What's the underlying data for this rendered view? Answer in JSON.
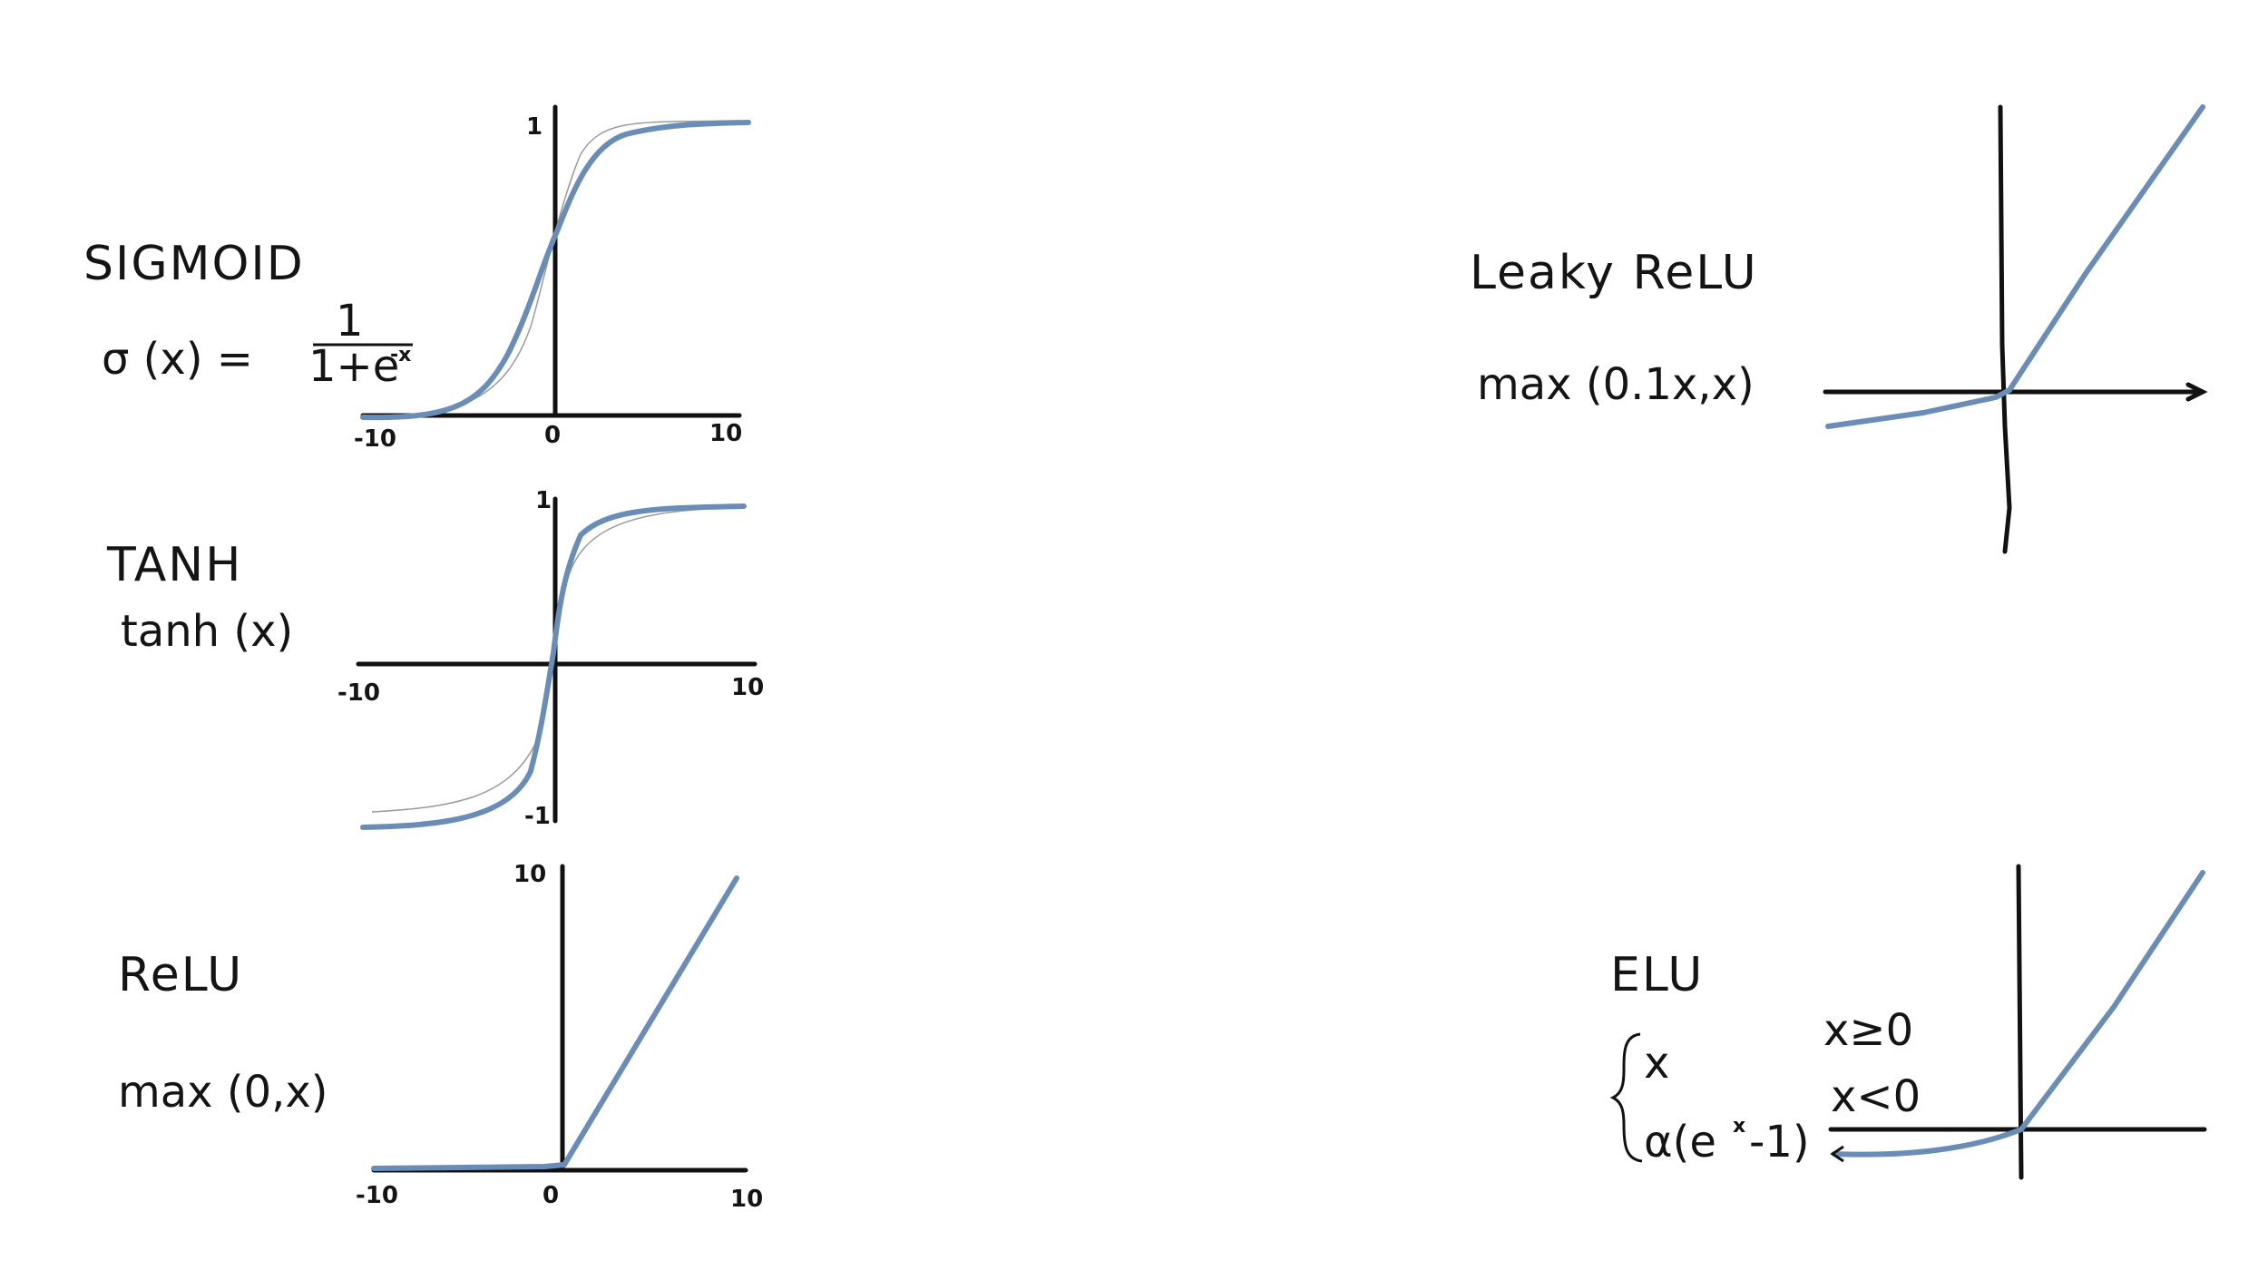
{
  "panels": {
    "sigmoid": {
      "title": "SIGMOID",
      "formula_lhs": "σ (x) =",
      "frac_num": "1",
      "frac_den": "1+e",
      "frac_exp": "-x",
      "y_tick": "1",
      "x_min": "-10",
      "x_zero": "0",
      "x_max": "10"
    },
    "tanh": {
      "title": "TANH",
      "formula": "tanh (x)",
      "y_top": "1",
      "y_bottom": "-1",
      "x_min": "-10",
      "x_max": "10"
    },
    "relu": {
      "title": "ReLU",
      "formula": "max (0,x)",
      "y_tick": "10",
      "x_min": "-10",
      "x_zero": "0",
      "x_max": "10"
    },
    "leaky_relu": {
      "title": "Leaky ReLU",
      "formula": "max (0.1x,x)"
    },
    "elu": {
      "title": "ELU",
      "case1": "x",
      "case1_cond": "x≥0",
      "case2": "α(e",
      "case2_exp": "x",
      "case2_tail": "-1)",
      "case2_cond": "x<0"
    }
  },
  "colors": {
    "ink": "#111111",
    "curve": "#6a8db8"
  },
  "chart_data": [
    {
      "type": "line",
      "name": "sigmoid",
      "x_range": [
        -10,
        10
      ],
      "y_range": [
        0,
        1
      ],
      "x_ticks": [
        -10,
        0,
        10
      ],
      "y_ticks": [
        1
      ]
    },
    {
      "type": "line",
      "name": "tanh",
      "x_range": [
        -10,
        10
      ],
      "y_range": [
        -1,
        1
      ],
      "x_ticks": [
        -10,
        10
      ],
      "y_ticks": [
        1,
        -1
      ]
    },
    {
      "type": "line",
      "name": "relu",
      "x_range": [
        -10,
        10
      ],
      "y_range": [
        0,
        10
      ],
      "x_ticks": [
        -10,
        0,
        10
      ],
      "y_ticks": [
        10
      ]
    },
    {
      "type": "line",
      "name": "leaky_relu",
      "x_range": [
        -10,
        10
      ],
      "y_range": [
        -1,
        10
      ]
    },
    {
      "type": "line",
      "name": "elu",
      "x_range": [
        -10,
        10
      ],
      "y_range": [
        -1,
        10
      ]
    }
  ]
}
